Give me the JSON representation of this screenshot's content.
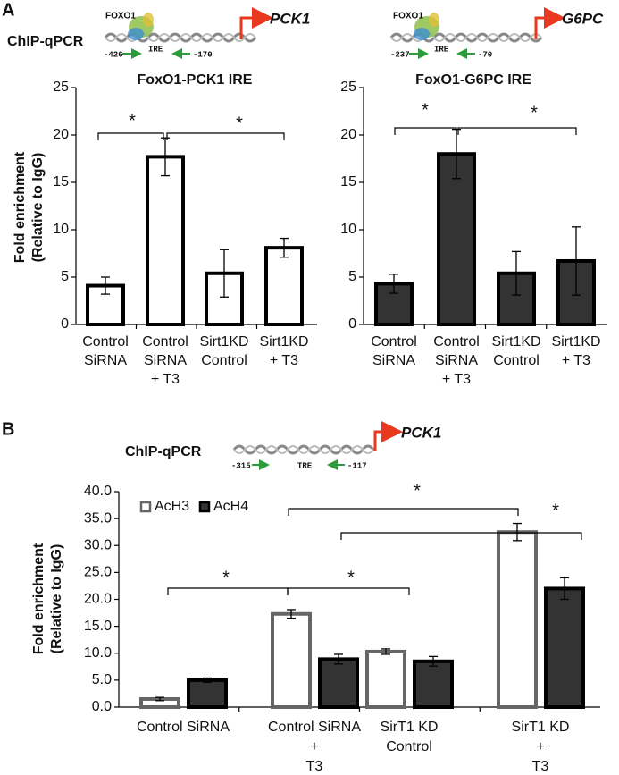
{
  "panels": [
    {
      "label": "A",
      "assay": "ChIP-qPCR",
      "diagrams": [
        {
          "factor": "FOXO1",
          "element": "IRE",
          "primer_left": "-426",
          "primer_right": "-170",
          "gene": "PCK1"
        },
        {
          "factor": "FOXO1",
          "element": "IRE",
          "primer_left": "-237",
          "primer_right": "-70",
          "gene": "G6PC"
        }
      ]
    },
    {
      "label": "B",
      "assay": "ChIP-qPCR",
      "diagrams": [
        {
          "element": "TRE",
          "primer_left": "-315",
          "primer_right": "-117",
          "gene": "PCK1"
        }
      ]
    }
  ],
  "chart_data": [
    {
      "type": "bar",
      "title": "FoxO1-PCK1 IRE",
      "ylabel": [
        "Fold enrichment",
        "(Relative to IgG)"
      ],
      "categories": [
        [
          "Control",
          "SiRNA"
        ],
        [
          "Control",
          "SiRNA",
          "+ T3"
        ],
        [
          "Sirt1KD",
          "Control"
        ],
        [
          "Sirt1KD",
          "+ T3"
        ]
      ],
      "values": [
        4.1,
        17.7,
        5.4,
        8.1
      ],
      "errors": [
        0.9,
        2.0,
        2.5,
        1.0
      ],
      "color": "#ffffff",
      "edgecolor": "#000000",
      "ylim": [
        0,
        25
      ],
      "yticks": [
        0,
        5,
        10,
        15,
        20,
        25
      ],
      "grid": false,
      "annotations": [
        "*",
        "*"
      ]
    },
    {
      "type": "bar",
      "title": "FoxO1-G6PC IRE",
      "categories": [
        [
          "Control",
          "SiRNA"
        ],
        [
          "Control",
          "SiRNA",
          "+ T3"
        ],
        [
          "Sirt1KD",
          "Control"
        ],
        [
          "Sirt1KD",
          "+ T3"
        ]
      ],
      "values": [
        4.3,
        18.0,
        5.4,
        6.7
      ],
      "errors": [
        1.0,
        2.6,
        2.3,
        3.6
      ],
      "color": "#333333",
      "edgecolor": "#000000",
      "ylim": [
        0,
        25
      ],
      "yticks": [
        0,
        5,
        10,
        15,
        20,
        25
      ],
      "grid": false,
      "annotations": [
        "*",
        "*"
      ]
    },
    {
      "type": "grouped_bar",
      "ylabel": [
        "Fold enrichment",
        "(Relative to IgG)"
      ],
      "categories": [
        [
          "Control SiRNA"
        ],
        [
          "Control SiRNA",
          "+",
          "T3"
        ],
        [
          "SirT1 KD",
          "Control"
        ],
        [
          "SirT1 KD",
          "+",
          "T3"
        ]
      ],
      "series": [
        {
          "name": "AcH3",
          "color": "#ffffff",
          "edgecolor": "#666666",
          "values": [
            1.5,
            17.3,
            10.3,
            32.5
          ],
          "errors": [
            0.3,
            0.8,
            0.5,
            1.6
          ]
        },
        {
          "name": "AcH4",
          "color": "#333333",
          "edgecolor": "#000000",
          "values": [
            5.0,
            8.9,
            8.5,
            22.0
          ],
          "errors": [
            0.4,
            0.9,
            0.9,
            2.0
          ]
        }
      ],
      "ylim": [
        0,
        40
      ],
      "yticks": [
        {
          "value": 0,
          "label": "0.0"
        },
        {
          "value": 5,
          "label": "5.0"
        },
        {
          "value": 10,
          "label": "10.0"
        },
        {
          "value": 15,
          "label": "15.0"
        },
        {
          "value": 20,
          "label": "20.0"
        },
        {
          "value": 25,
          "label": "25.0"
        },
        {
          "value": 30,
          "label": "30.0"
        },
        {
          "value": 35,
          "label": "35.0"
        },
        {
          "value": 40,
          "label": "40.0"
        }
      ],
      "grid": false,
      "legend": "upper left",
      "annotations": [
        "*",
        "*",
        "*",
        "*"
      ]
    }
  ]
}
